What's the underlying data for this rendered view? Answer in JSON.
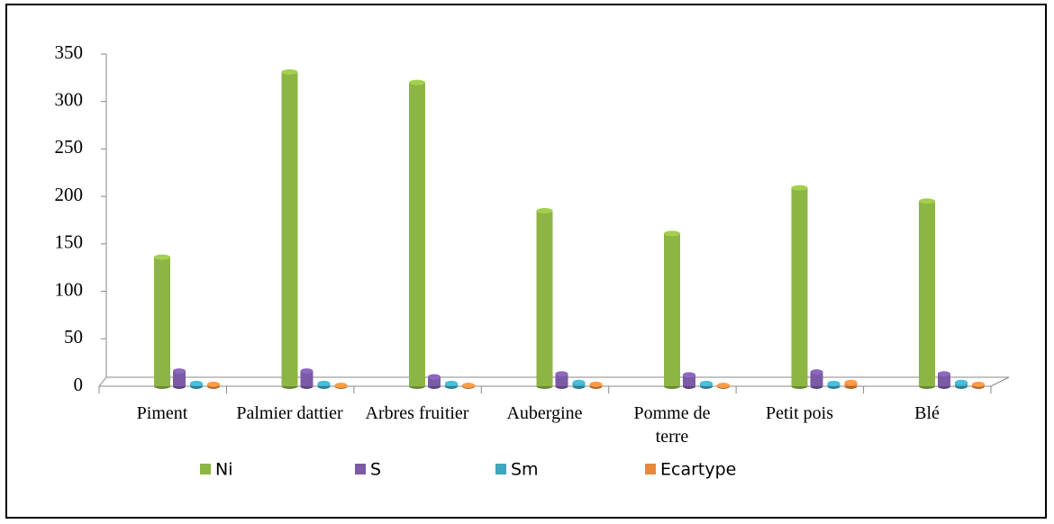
{
  "chart_data": {
    "type": "bar",
    "categories": [
      "Piment",
      "Palmier dattier",
      "Arbres fruitier",
      "Aubergine",
      "Pomme de terre",
      "Petit pois",
      "Blé"
    ],
    "series": [
      {
        "name": "Ni",
        "color": "#8db544",
        "values": [
          136,
          331,
          320,
          185,
          161,
          209,
          195
        ]
      },
      {
        "name": "S",
        "color": "#7b5aa6",
        "values": [
          16,
          16,
          10,
          13,
          12,
          15,
          13
        ]
      },
      {
        "name": "Sm",
        "color": "#3fa6c0",
        "values": [
          3,
          3,
          3,
          4,
          3,
          3,
          4
        ]
      },
      {
        "name": "Ecartype",
        "color": "#e8883a",
        "values": [
          2,
          1,
          1,
          2,
          1,
          4,
          2
        ]
      }
    ],
    "ylim": [
      0,
      350
    ],
    "yticks": [
      0,
      50,
      100,
      150,
      200,
      250,
      300,
      350
    ],
    "legend": "bottom"
  }
}
